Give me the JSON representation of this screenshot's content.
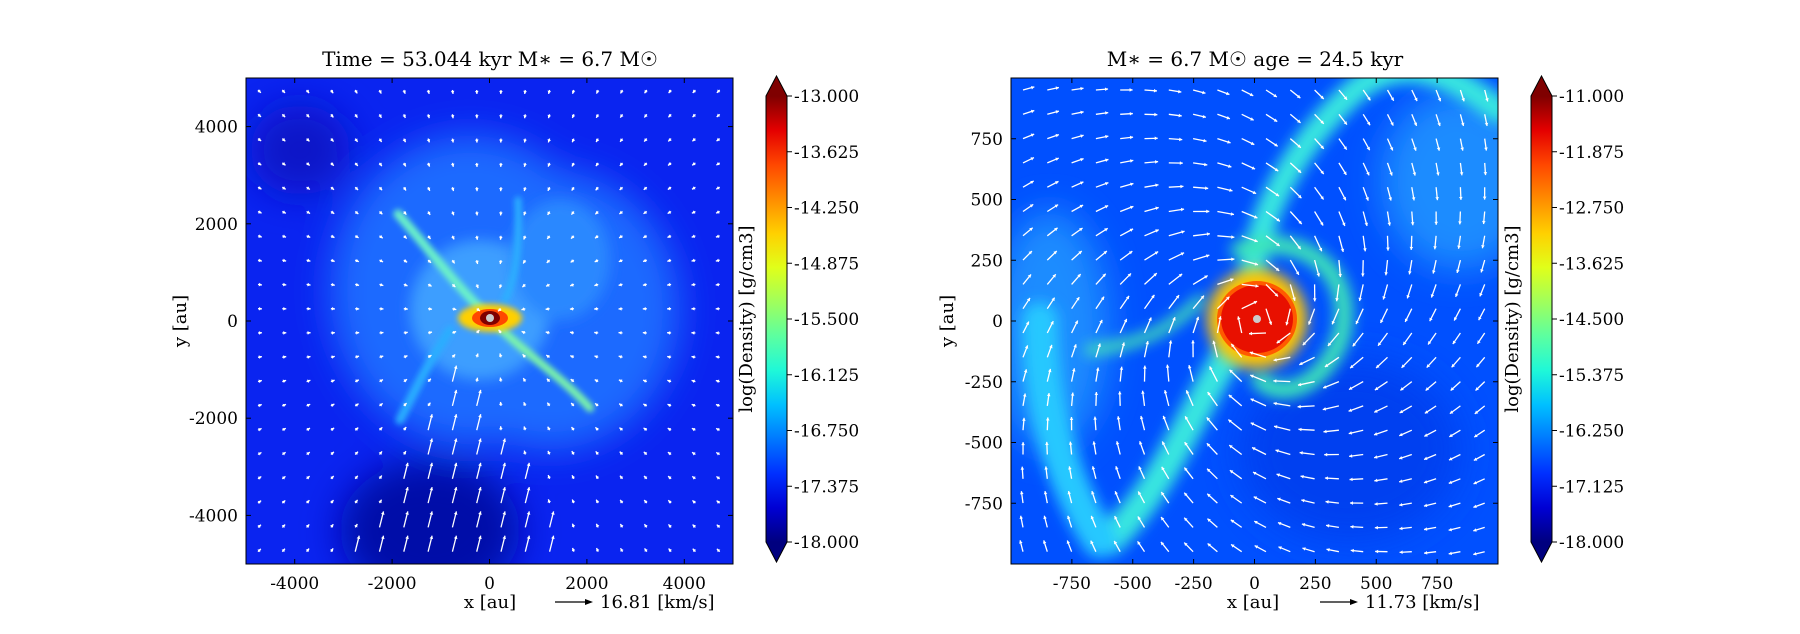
{
  "colors": {
    "colormap": [
      "#00007f",
      "#0000d4",
      "#0030ff",
      "#0078ff",
      "#00c0ff",
      "#1ff8d8",
      "#5cffa0",
      "#a0ff5c",
      "#e0ff1a",
      "#ffd000",
      "#ff8c00",
      "#ff4700",
      "#e40000",
      "#7f0000"
    ],
    "arrow": "#ffffff",
    "star": "#bbbbbb"
  },
  "chart_data": [
    {
      "type": "heatmap",
      "title": "Time = 53.044 kyr    M$_*$ = 6.7 M$_\\odot$",
      "title_display": "Time = 53.044 kyr    M∗ = 6.7 M☉",
      "xlabel": "x [au]",
      "ylabel": "y [au]",
      "xlim": [
        -5000,
        5000
      ],
      "ylim": [
        -5000,
        5000
      ],
      "xticks": [
        -4000,
        -2000,
        0,
        2000,
        4000
      ],
      "xtick_labels": [
        "-4000",
        "-2000",
        "0",
        "2000",
        "4000"
      ],
      "yticks": [
        -4000,
        -2000,
        0,
        2000,
        4000
      ],
      "ytick_labels": [
        "-4000",
        "-2000",
        "0",
        "2000",
        "4000"
      ],
      "colorbar": {
        "label": "log(Density) [g/cm3]",
        "min": -18.0,
        "max": -13.0,
        "ticks": [
          "-13.000",
          "-13.625",
          "-14.250",
          "-14.875",
          "-15.500",
          "-16.125",
          "-16.750",
          "-17.375",
          "-18.000"
        ]
      },
      "velocity_key": {
        "value": 16.81,
        "label": "16.81 [km/s]"
      },
      "grid": false
    },
    {
      "type": "heatmap",
      "title": "M$_*$ = 6.7 M$_\\odot$    age = 24.5 kyr",
      "title_display": "M∗ = 6.7 M☉         age = 24.5 kyr",
      "xlabel": "x [au]",
      "ylabel": "y [au]",
      "xlim": [
        -1000,
        1000
      ],
      "ylim": [
        -1000,
        1000
      ],
      "xticks": [
        -750,
        -500,
        -250,
        0,
        250,
        500,
        750
      ],
      "xtick_labels": [
        "-750",
        "-500",
        "-250",
        "0",
        "250",
        "500",
        "750"
      ],
      "yticks": [
        -750,
        -500,
        -250,
        0,
        250,
        500,
        750
      ],
      "ytick_labels": [
        "-750",
        "-500",
        "-250",
        "0",
        "250",
        "500",
        "750"
      ],
      "colorbar": {
        "label": "log(Density) [g/cm3]",
        "min": -18.0,
        "max": -11.0,
        "ticks": [
          "-11.000",
          "-11.875",
          "-12.750",
          "-13.625",
          "-14.500",
          "-15.375",
          "-16.250",
          "-17.125",
          "-18.000"
        ]
      },
      "velocity_key": {
        "value": 11.73,
        "label": "11.73 [km/s]"
      },
      "grid": false
    }
  ]
}
